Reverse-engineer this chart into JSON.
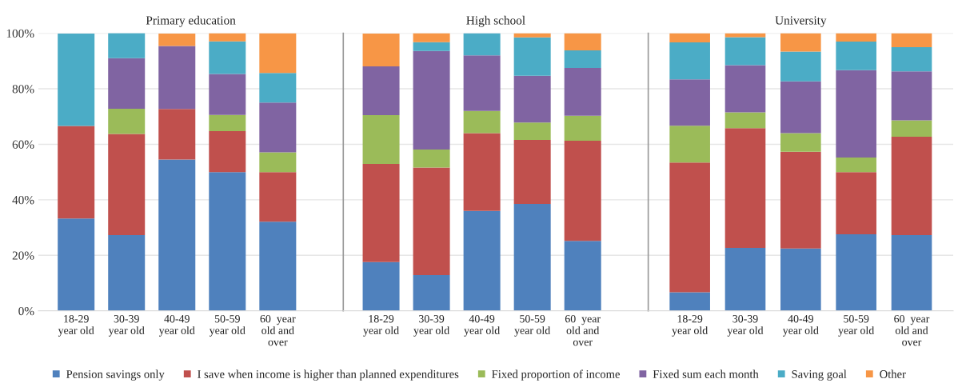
{
  "chart_data": [
    {
      "type": "bar",
      "stacked": true,
      "title": "Primary education",
      "categories": [
        "18-29\nyear old",
        "30-39\nyear old",
        "40-49\nyear old",
        "50-59\nyear old",
        "60  year\nold and\nover"
      ],
      "ylim": [
        0,
        100
      ],
      "yticks": [
        {
          "value": 0,
          "label": "0%"
        },
        {
          "value": 20,
          "label": "20%"
        },
        {
          "value": 40,
          "label": "40%"
        },
        {
          "value": 60,
          "label": "60%"
        },
        {
          "value": 80,
          "label": "80%"
        },
        {
          "value": 100,
          "label": "100%"
        }
      ],
      "grid": "y",
      "legend": "bottom",
      "series": [
        {
          "name": "Pension savings only",
          "color": "#4f81bd",
          "values": [
            33.3,
            27.3,
            54.5,
            50,
            32.1
          ]
        },
        {
          "name": "I save when income is higher than planned expenditures",
          "color": "#c0504d",
          "values": [
            33.3,
            36.4,
            18.2,
            14.7,
            17.9
          ]
        },
        {
          "name": "Fixed proportion of income",
          "color": "#9bbb59",
          "values": [
            0,
            9.1,
            0,
            5.9,
            7.1
          ]
        },
        {
          "name": "Fixed sum each month",
          "color": "#8064a2",
          "values": [
            0,
            18.2,
            22.7,
            14.7,
            17.9
          ]
        },
        {
          "name": "Saving goal",
          "color": "#4bacc6",
          "values": [
            33.3,
            9.1,
            0,
            11.8,
            10.7
          ]
        },
        {
          "name": "Other",
          "color": "#f79646",
          "values": [
            0,
            0,
            4.5,
            2.9,
            14.3
          ]
        }
      ]
    },
    {
      "type": "bar",
      "stacked": true,
      "title": "High school",
      "categories": [
        "18-29\nyear old",
        "30-39\nyear old",
        "40-49\nyear old",
        "50-59\nyear old",
        "60  year\nold and\nover"
      ],
      "ylim": [
        0,
        100
      ],
      "grid": "y",
      "tick_labels": "x",
      "series": [
        {
          "color": "#4f81bd",
          "values": [
            17.6,
            12.9,
            36,
            38.5,
            25.2
          ]
        },
        {
          "color": "#c0504d",
          "values": [
            35.3,
            38.7,
            28,
            23.1,
            36.1
          ]
        },
        {
          "color": "#9bbb59",
          "values": [
            17.6,
            6.5,
            8,
            6.2,
            9.0
          ]
        },
        {
          "color": "#8064a2",
          "values": [
            17.6,
            35.5,
            20,
            16.9,
            17.2
          ]
        },
        {
          "color": "#4bacc6",
          "values": [
            0,
            3.2,
            8,
            13.8,
            6.3
          ]
        },
        {
          "color": "#f79646",
          "values": [
            11.8,
            3.2,
            0,
            1.5,
            6.2
          ]
        }
      ]
    },
    {
      "type": "bar",
      "stacked": true,
      "title": "University",
      "categories": [
        "18-29\nyear old",
        "30-39\nyear old",
        "40-49\nyear old",
        "50-59\nyear old",
        "60  year\nold and\nover"
      ],
      "ylim": [
        0,
        100
      ],
      "grid": "y",
      "tick_labels": "x",
      "series": [
        {
          "color": "#4f81bd",
          "values": [
            6.7,
            22.7,
            22.5,
            27.6,
            27.3
          ]
        },
        {
          "color": "#c0504d",
          "values": [
            46.7,
            43.1,
            34.8,
            22.4,
            35.4
          ]
        },
        {
          "color": "#9bbb59",
          "values": [
            13.3,
            5.7,
            6.7,
            5.2,
            5.9
          ]
        },
        {
          "color": "#8064a2",
          "values": [
            16.7,
            17.0,
            18.7,
            31.5,
            17.7
          ]
        },
        {
          "color": "#4bacc6",
          "values": [
            13.3,
            10.1,
            10.7,
            10.3,
            8.7
          ]
        },
        {
          "color": "#f79646",
          "values": [
            3.3,
            1.4,
            6.6,
            3.0,
            5.0
          ]
        }
      ]
    }
  ]
}
